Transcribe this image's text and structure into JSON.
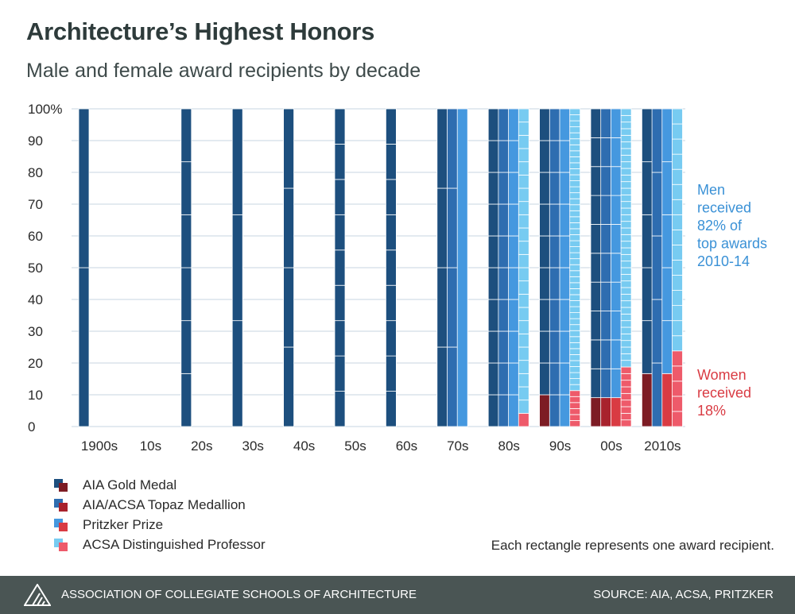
{
  "chart_data": {
    "type": "bar",
    "subtype": "stacked-unit",
    "title": "Architecture’s Highest Honors",
    "subtitle": "Male and female award recipients by decade",
    "categories": [
      "1900s",
      "10s",
      "20s",
      "30s",
      "40s",
      "50s",
      "60s",
      "70s",
      "80s",
      "90s",
      "00s",
      "2010s"
    ],
    "yticks": [
      "100%",
      "90",
      "80",
      "70",
      "60",
      "50",
      "40",
      "30",
      "20",
      "10",
      "0"
    ],
    "ylim": [
      0,
      100
    ],
    "grid": true,
    "series": [
      {
        "name": "AIA Gold Medal",
        "men_color": "#1d4f7e",
        "women_color": "#7d1c24",
        "men": [
          2,
          0,
          6,
          3,
          4,
          9,
          9,
          4,
          10,
          9,
          10,
          5
        ],
        "women": [
          0,
          0,
          0,
          0,
          0,
          0,
          0,
          0,
          0,
          1,
          1,
          1
        ]
      },
      {
        "name": "AIA/ACSA Topaz Medallion",
        "men_color": "#2e6db0",
        "women_color": "#a8222d",
        "men": [
          0,
          0,
          0,
          0,
          0,
          0,
          0,
          4,
          10,
          10,
          10,
          5
        ],
        "women": [
          0,
          0,
          0,
          0,
          0,
          0,
          0,
          0,
          0,
          0,
          1,
          0
        ]
      },
      {
        "name": "Pritzker Prize",
        "men_color": "#4598df",
        "women_color": "#d93b43",
        "men": [
          0,
          0,
          0,
          0,
          0,
          0,
          0,
          1,
          10,
          10,
          10,
          5
        ],
        "women": [
          0,
          0,
          0,
          0,
          0,
          0,
          0,
          0,
          0,
          0,
          1,
          1
        ]
      },
      {
        "name": "ACSA Distinguished Professor",
        "men_color": "#77cbf1",
        "women_color": "#ee5a6a",
        "men": [
          0,
          0,
          0,
          0,
          0,
          0,
          0,
          0,
          23,
          47,
          39,
          16
        ],
        "women": [
          0,
          0,
          0,
          0,
          0,
          0,
          0,
          0,
          1,
          6,
          9,
          5
        ]
      }
    ],
    "annotations": {
      "men": [
        "Men",
        "received",
        "82% of",
        "top awards",
        "2010-14"
      ],
      "women": [
        "Women",
        "received",
        "18%"
      ]
    },
    "grid_color": "#d2dde6"
  },
  "legend_colors_label": "legend",
  "note": "Each rectangle represents one award recipient.",
  "footer": {
    "org": "ASSOCIATION OF COLLEGIATE SCHOOLS OF ARCHITECTURE",
    "source": "SOURCE: AIA, ACSA, PRITZKER",
    "background": "#4a5554"
  }
}
